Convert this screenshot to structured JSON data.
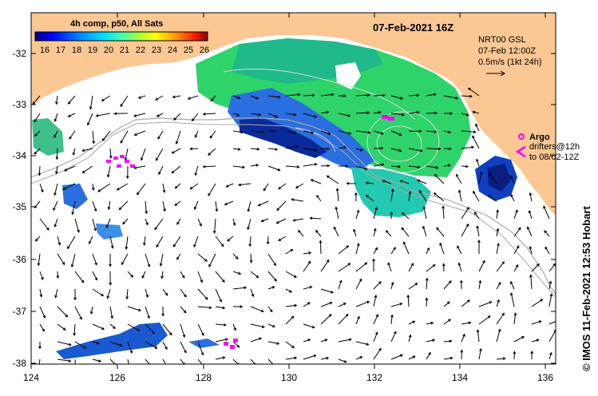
{
  "map": {
    "title": "07-Feb-2021 16Z",
    "x_ticks": [
      "124",
      "126",
      "128",
      "130",
      "132",
      "134",
      "136"
    ],
    "y_ticks": [
      "-32",
      "-33",
      "-34",
      "-35",
      "-36",
      "-37",
      "-38"
    ],
    "credit": "© IMOS 11-Feb-2021 12:53 Hobart",
    "colors": {
      "land": "#fbc793",
      "ocean": "#ffffff",
      "argo": "#ff00ff"
    }
  },
  "colorbar": {
    "title": "4h comp, p50, All Sats",
    "ticks": [
      "16",
      "17",
      "18",
      "19",
      "20",
      "21",
      "22",
      "23",
      "24",
      "25",
      "26"
    ],
    "colors": [
      "#00007f",
      "#0000ff",
      "#0060ff",
      "#00bfff",
      "#00ffbf",
      "#40ff40",
      "#a0ff00",
      "#ffff00",
      "#ffa000",
      "#ff4000",
      "#a00000"
    ]
  },
  "model_info": {
    "line1": "NRT00 GSL",
    "line2": "07-Feb 12:00Z",
    "line3": "0.5m/s (1kt 24h)"
  },
  "legend": {
    "argo": "Argo",
    "drifters_line1": "drifters@12h",
    "drifters_line2": "to 08/02-12Z"
  }
}
